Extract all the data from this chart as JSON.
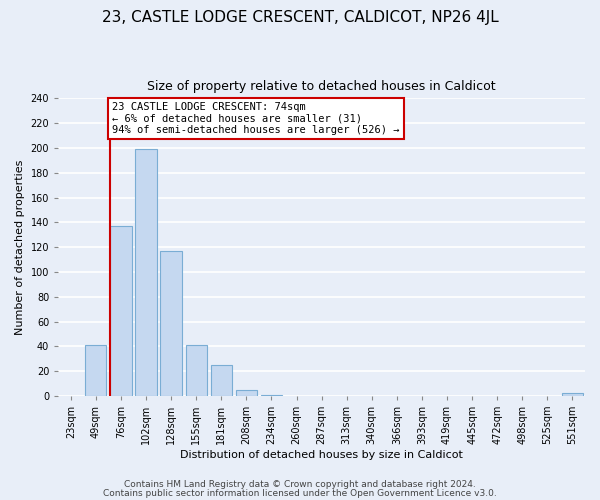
{
  "title": "23, CASTLE LODGE CRESCENT, CALDICOT, NP26 4JL",
  "subtitle": "Size of property relative to detached houses in Caldicot",
  "xlabel": "Distribution of detached houses by size in Caldicot",
  "ylabel": "Number of detached properties",
  "bar_labels": [
    "23sqm",
    "49sqm",
    "76sqm",
    "102sqm",
    "128sqm",
    "155sqm",
    "181sqm",
    "208sqm",
    "234sqm",
    "260sqm",
    "287sqm",
    "313sqm",
    "340sqm",
    "366sqm",
    "393sqm",
    "419sqm",
    "445sqm",
    "472sqm",
    "498sqm",
    "525sqm",
    "551sqm"
  ],
  "bar_values": [
    0,
    41,
    137,
    199,
    117,
    41,
    25,
    5,
    1,
    0,
    0,
    0,
    0,
    0,
    0,
    0,
    0,
    0,
    0,
    0,
    2
  ],
  "bar_color": "#c5d8f0",
  "bar_edge_color": "#7aadd4",
  "highlight_bar_index": 2,
  "highlight_edge_color": "#cc0000",
  "ylim": [
    0,
    240
  ],
  "yticks": [
    0,
    20,
    40,
    60,
    80,
    100,
    120,
    140,
    160,
    180,
    200,
    220,
    240
  ],
  "annotation_line1": "23 CASTLE LODGE CRESCENT: 74sqm",
  "annotation_line2": "← 6% of detached houses are smaller (31)",
  "annotation_line3": "94% of semi-detached houses are larger (526) →",
  "annotation_box_edge_color": "#cc0000",
  "footer_line1": "Contains HM Land Registry data © Crown copyright and database right 2024.",
  "footer_line2": "Contains public sector information licensed under the Open Government Licence v3.0.",
  "background_color": "#e8eef8",
  "plot_background_color": "#e8eef8",
  "grid_color": "#ffffff",
  "title_fontsize": 11,
  "subtitle_fontsize": 9,
  "axis_fontsize": 8,
  "tick_fontsize": 7,
  "footer_fontsize": 6.5
}
